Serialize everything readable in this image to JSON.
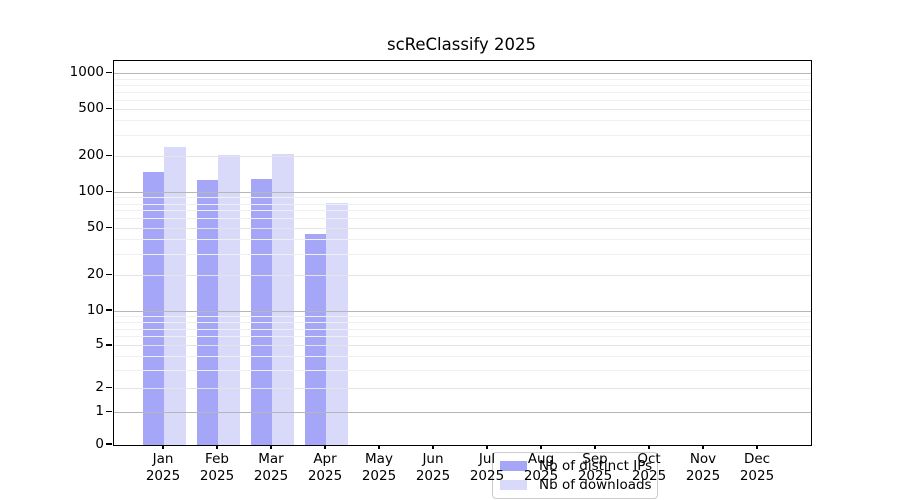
{
  "chart_data": {
    "type": "bar",
    "title": "scReClassify 2025",
    "categories": [
      "Jan 2025",
      "Feb 2025",
      "Mar 2025",
      "Apr 2025",
      "May 2025",
      "Jun 2025",
      "Jul 2025",
      "Aug 2025",
      "Sep 2025",
      "Oct 2025",
      "Nov 2025",
      "Dec 2025"
    ],
    "series": [
      {
        "name": "Nb of distinct IPs",
        "color": "#a6a6f8",
        "values": [
          150,
          128,
          130,
          45,
          0,
          0,
          0,
          0,
          0,
          0,
          0,
          0
        ]
      },
      {
        "name": "Nb of downloads",
        "color": "#d9d9f9",
        "values": [
          240,
          208,
          213,
          82,
          0,
          0,
          0,
          0,
          0,
          0,
          0,
          0
        ]
      }
    ],
    "xlabel": "",
    "ylabel": "",
    "yscale": "symlog",
    "yticks": [
      0,
      1,
      2,
      5,
      10,
      20,
      50,
      100,
      200,
      500,
      1000
    ],
    "ylim": [
      0,
      1280
    ],
    "grid": "horizontal, major and minor, drawn above bars",
    "legend_position": "lower center inside axes",
    "colors": {
      "grid_major": "#b6b6b6",
      "grid_labeled": "#e4e4e4",
      "grid_minor": "#f0f0f0",
      "axis": "#000000",
      "background": "#ffffff"
    }
  }
}
